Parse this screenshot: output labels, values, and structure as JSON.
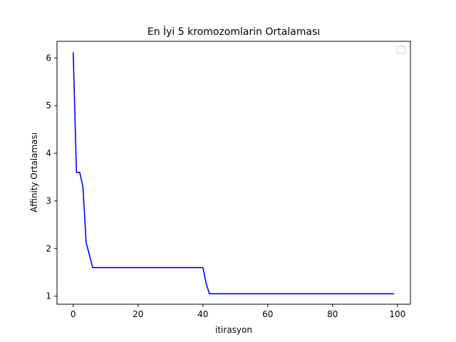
{
  "chart_data": {
    "type": "line",
    "title": "En İyi 5 kromozomlarin Ortalaması",
    "xlabel": "itirasyon",
    "ylabel": "Affinity Ortalaması",
    "xlim": [
      -5,
      104
    ],
    "ylim": [
      0.83,
      6.35
    ],
    "xticks": [
      0,
      20,
      40,
      60,
      80,
      100
    ],
    "yticks": [
      1,
      2,
      3,
      4,
      5,
      6
    ],
    "grid": false,
    "legend": "top-right",
    "series": [
      {
        "color": "#0000ff",
        "x": [
          0,
          1,
          2,
          3,
          4,
          5,
          6,
          7,
          8,
          9,
          10,
          11,
          12,
          13,
          14,
          15,
          16,
          17,
          18,
          19,
          20,
          21,
          22,
          23,
          24,
          25,
          26,
          27,
          28,
          29,
          30,
          31,
          32,
          33,
          34,
          35,
          36,
          37,
          38,
          39,
          40,
          41,
          42,
          43,
          44,
          45,
          46,
          47,
          48,
          49,
          50,
          51,
          52,
          53,
          54,
          55,
          56,
          57,
          58,
          59,
          60,
          61,
          62,
          63,
          64,
          65,
          66,
          67,
          68,
          69,
          70,
          71,
          72,
          73,
          74,
          75,
          76,
          77,
          78,
          79,
          80,
          81,
          82,
          83,
          84,
          85,
          86,
          87,
          88,
          89,
          90,
          91,
          92,
          93,
          94,
          95,
          96,
          97,
          98,
          99
        ],
        "y": [
          6.12,
          3.6,
          3.6,
          3.3,
          2.12,
          1.87,
          1.6,
          1.6,
          1.6,
          1.6,
          1.6,
          1.6,
          1.6,
          1.6,
          1.6,
          1.6,
          1.6,
          1.6,
          1.6,
          1.6,
          1.6,
          1.6,
          1.6,
          1.6,
          1.6,
          1.6,
          1.6,
          1.6,
          1.6,
          1.6,
          1.6,
          1.6,
          1.6,
          1.6,
          1.6,
          1.6,
          1.6,
          1.6,
          1.6,
          1.6,
          1.6,
          1.27,
          1.05,
          1.05,
          1.05,
          1.05,
          1.05,
          1.05,
          1.05,
          1.05,
          1.05,
          1.05,
          1.05,
          1.05,
          1.05,
          1.05,
          1.05,
          1.05,
          1.05,
          1.05,
          1.05,
          1.05,
          1.05,
          1.05,
          1.05,
          1.05,
          1.05,
          1.05,
          1.05,
          1.05,
          1.05,
          1.05,
          1.05,
          1.05,
          1.05,
          1.05,
          1.05,
          1.05,
          1.05,
          1.05,
          1.05,
          1.05,
          1.05,
          1.05,
          1.05,
          1.05,
          1.05,
          1.05,
          1.05,
          1.05,
          1.05,
          1.05,
          1.05,
          1.05,
          1.05,
          1.05,
          1.05,
          1.05,
          1.05,
          1.05
        ]
      }
    ]
  }
}
